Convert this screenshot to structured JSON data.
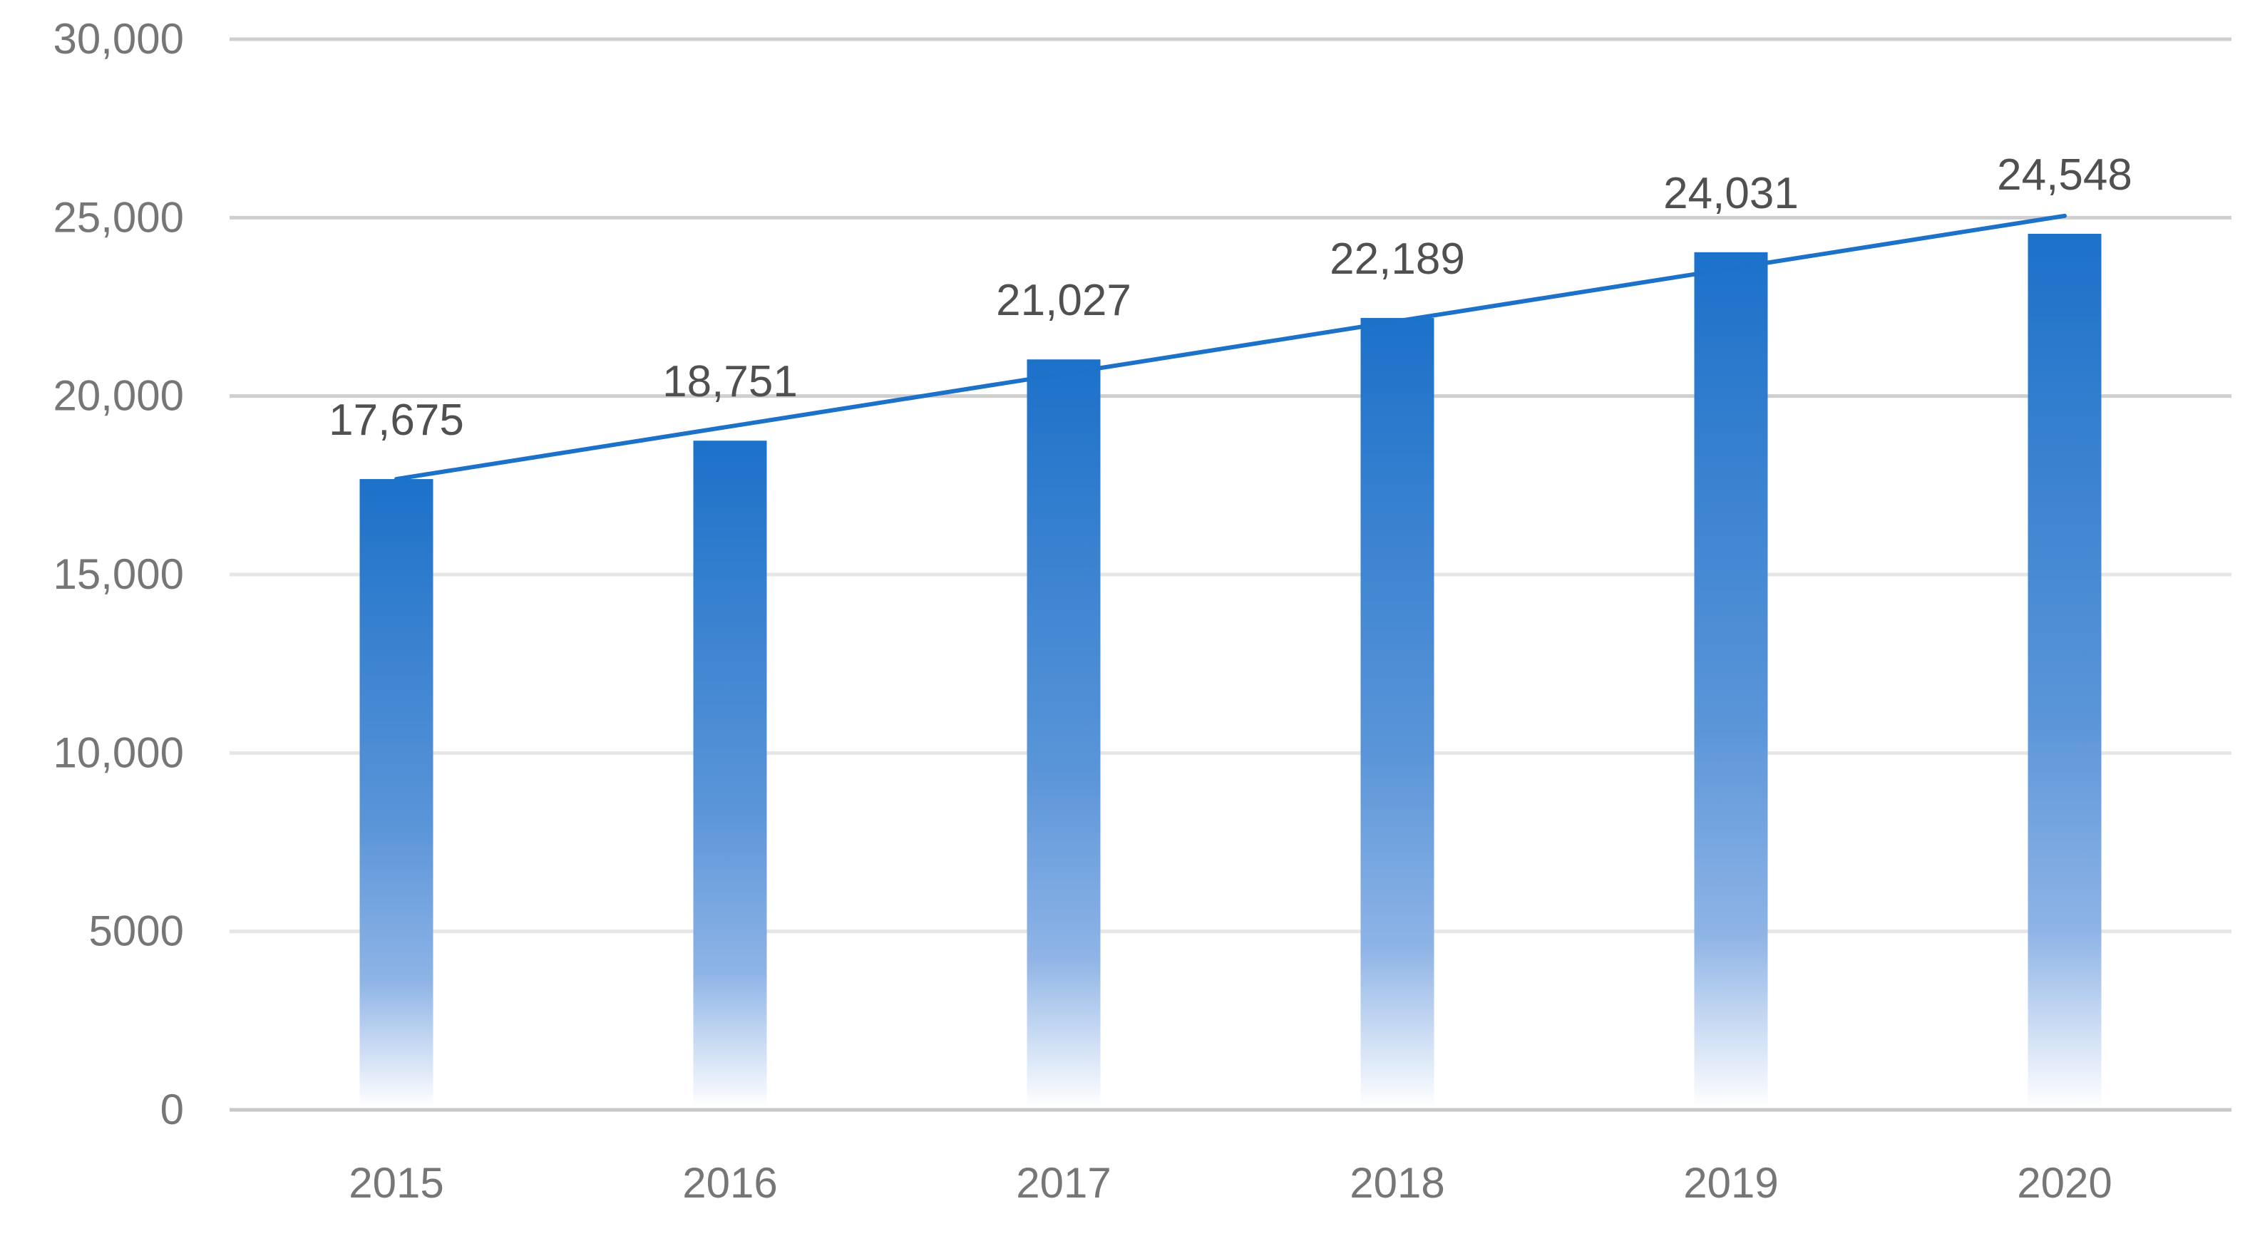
{
  "chart_data": {
    "type": "bar",
    "categories": [
      "2015",
      "2016",
      "2017",
      "2018",
      "2019",
      "2020"
    ],
    "values": [
      17675,
      18751,
      21027,
      22189,
      24031,
      24548
    ],
    "data_labels": [
      "17,675",
      "18,751",
      "21,027",
      "22,189",
      "24,031",
      "24,548"
    ],
    "ylim": [
      0,
      30000
    ],
    "y_ticks": [
      0,
      5000,
      10000,
      15000,
      20000,
      25000,
      30000
    ],
    "y_tick_labels": [
      "0",
      "5000",
      "10,000",
      "15,000",
      "20,000",
      "25,000",
      "30,000"
    ],
    "title": "",
    "xlabel": "",
    "ylabel": "",
    "grid": true,
    "legend": "none",
    "trendline": {
      "type": "linear",
      "from": {
        "x": "2015",
        "y": 17675
      },
      "to": {
        "x": "2020",
        "y": 25050
      }
    },
    "colors": {
      "bar_top": "#1c71c9",
      "bar_bottom": "#ffffff",
      "trendline": "#1c71c9",
      "gridline": "#d9d9d9",
      "tick_text": "#767676",
      "label_text": "#505050"
    }
  }
}
